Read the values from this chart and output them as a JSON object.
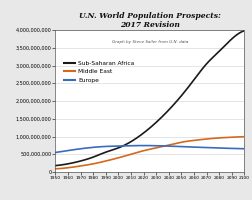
{
  "title": "U.N. World Population Prospects:\n2017 Revision",
  "subtitle": "Graph by Steve Sailer from U.N. data",
  "years": [
    1950,
    1960,
    1970,
    1980,
    1990,
    2000,
    2010,
    2020,
    2030,
    2040,
    2050,
    2060,
    2070,
    2080,
    2090,
    2100
  ],
  "sub_saharan_africa": [
    180000000,
    230000000,
    310000000,
    420000000,
    560000000,
    680000000,
    856000000,
    1100000000,
    1400000000,
    1750000000,
    2150000000,
    2600000000,
    3050000000,
    3400000000,
    3750000000,
    3980000000
  ],
  "middle_east": [
    90000000,
    120000000,
    170000000,
    230000000,
    310000000,
    400000000,
    500000000,
    600000000,
    680000000,
    760000000,
    840000000,
    890000000,
    930000000,
    960000000,
    980000000,
    995000000
  ],
  "europe": [
    550000000,
    605000000,
    655000000,
    695000000,
    720000000,
    730000000,
    740000000,
    745000000,
    740000000,
    730000000,
    715000000,
    700000000,
    690000000,
    675000000,
    665000000,
    655000000
  ],
  "colors": {
    "sub_saharan_africa": "#1a1a1a",
    "middle_east": "#d4691e",
    "europe": "#3a6bbf"
  },
  "ylim": [
    0,
    4000000000
  ],
  "xlim": [
    1950,
    2100
  ],
  "ylabel_ticks": [
    0,
    500000000,
    1000000000,
    1500000000,
    2000000000,
    2500000000,
    3000000000,
    3500000000,
    4000000000
  ],
  "background_color": "#e8e8e8",
  "plot_background": "#ffffff"
}
